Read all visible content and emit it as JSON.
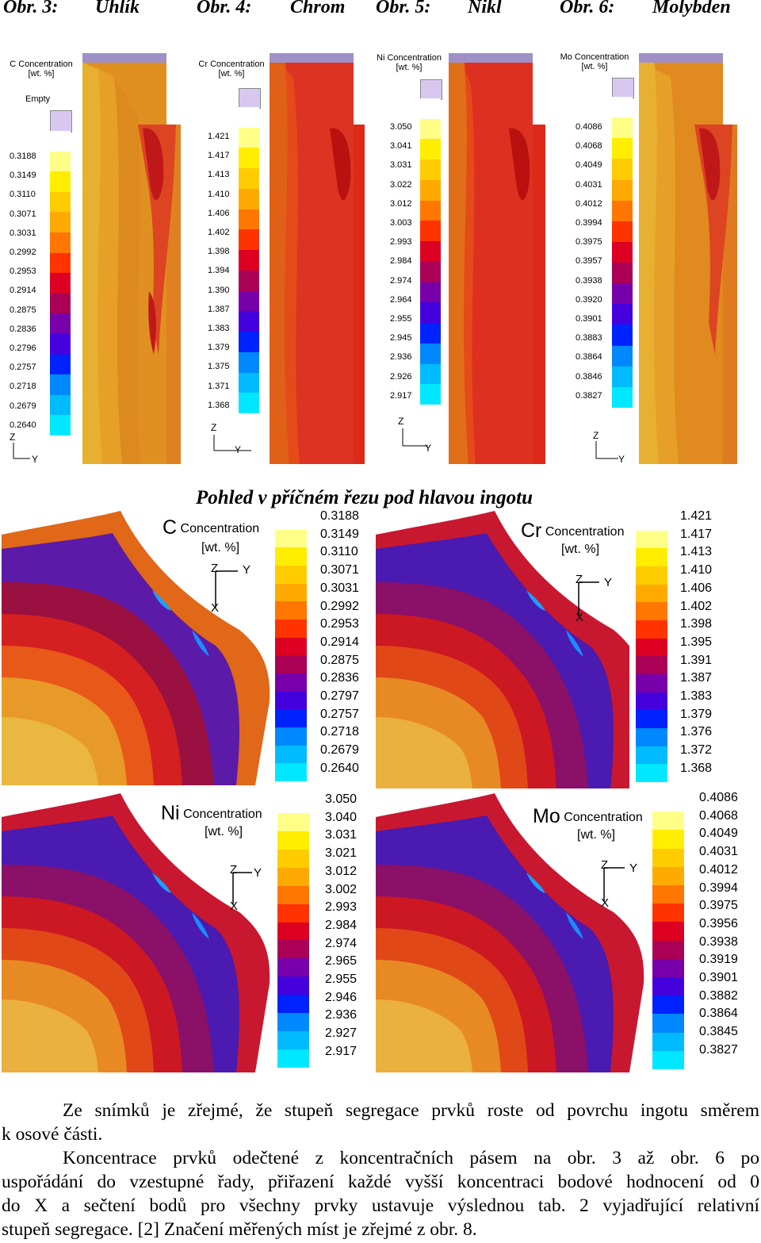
{
  "captions": [
    {
      "num": "Obr. 3:",
      "name": "Uhlík"
    },
    {
      "num": "Obr. 4:",
      "name": "Chrom"
    },
    {
      "num": "Obr. 5:",
      "name": "Nikl"
    },
    {
      "num": "Obr. 6:",
      "name": "Molybden"
    }
  ],
  "top_panels": [
    {
      "title_l1": "C Concentration",
      "title_l2": "[wt. %]",
      "empty_label": "Empty",
      "ticks": [
        "0.3188",
        "0.3149",
        "0.3110",
        "0.3071",
        "0.3031",
        "0.2992",
        "0.2953",
        "0.2914",
        "0.2875",
        "0.2836",
        "0.2796",
        "0.2757",
        "0.2718",
        "0.2679",
        "0.2640"
      ],
      "axis_z": "Z",
      "axis_y": "Y"
    },
    {
      "title_l1": "Cr Concentration",
      "title_l2": "[wt. %]",
      "ticks": [
        "1.421",
        "1.417",
        "1.413",
        "1.410",
        "1.406",
        "1.402",
        "1.398",
        "1.394",
        "1.390",
        "1.387",
        "1.383",
        "1.379",
        "1.375",
        "1.371",
        "1.368"
      ],
      "axis_z": "Z",
      "axis_y": "Y"
    },
    {
      "title_l1": "Ni Concentration",
      "title_l2": "[wt. %]",
      "ticks": [
        "3.050",
        "3.041",
        "3.031",
        "3.022",
        "3.012",
        "3.003",
        "2.993",
        "2.984",
        "2.974",
        "2.964",
        "2.955",
        "2.945",
        "2.936",
        "2.926",
        "2.917"
      ],
      "axis_z": "Z",
      "axis_y": "Y"
    },
    {
      "title_l1": "Mo Concentration",
      "title_l2": "[wt. %]",
      "ticks": [
        "0.4086",
        "0.4068",
        "0.4049",
        "0.4031",
        "0.4012",
        "0.3994",
        "0.3975",
        "0.3957",
        "0.3938",
        "0.3920",
        "0.3901",
        "0.3883",
        "0.3864",
        "0.3846",
        "0.3827"
      ],
      "axis_z": "Z",
      "axis_y": "Y"
    }
  ],
  "section_title": "Pohled v příčném řezu pod hlavou ingotu",
  "cross_panels": [
    {
      "symbol": "C",
      "title": "Concentration",
      "unit": "[wt. %]",
      "ticks": [
        "0.3188",
        "0.3149",
        "0.3110",
        "0.3071",
        "0.3031",
        "0.2992",
        "0.2953",
        "0.2914",
        "0.2875",
        "0.2836",
        "0.2797",
        "0.2757",
        "0.2718",
        "0.2679",
        "0.2640"
      ],
      "axis_z": "Z",
      "axis_y": "Y",
      "axis_x": "X"
    },
    {
      "symbol": "Cr",
      "title": "Concentration",
      "unit": "[wt. %]",
      "ticks": [
        "1.421",
        "1.417",
        "1.413",
        "1.410",
        "1.406",
        "1.402",
        "1.398",
        "1.395",
        "1.391",
        "1.387",
        "1.383",
        "1.379",
        "1.376",
        "1.372",
        "1.368"
      ],
      "axis_z": "Z",
      "axis_y": "Y",
      "axis_x": "X"
    },
    {
      "symbol": "Ni",
      "title": "Concentration",
      "unit": "[wt. %]",
      "ticks": [
        "3.050",
        "3.040",
        "3.031",
        "3.021",
        "3.012",
        "3.002",
        "2.993",
        "2.984",
        "2.974",
        "2.965",
        "2.955",
        "2.946",
        "2.936",
        "2.927",
        "2.917"
      ],
      "axis_z": "Z",
      "axis_y": "Y",
      "axis_x": "X"
    },
    {
      "symbol": "Mo",
      "title": "Concentration",
      "unit": "[wt. %]",
      "ticks": [
        "0.4086",
        "0.4068",
        "0.4049",
        "0.4031",
        "0.4012",
        "0.3994",
        "0.3975",
        "0.3956",
        "0.3938",
        "0.3919",
        "0.3901",
        "0.3882",
        "0.3864",
        "0.3845",
        "0.3827"
      ],
      "axis_z": "Z",
      "axis_y": "Y",
      "axis_x": "X"
    }
  ],
  "legend_colors": [
    "#ffffff",
    "#ffff88",
    "#ffee00",
    "#ffcc00",
    "#ffaa00",
    "#ff7700",
    "#ff3300",
    "#dd0022",
    "#aa0055",
    "#7700aa",
    "#4400dd",
    "#0022ff",
    "#0088ff",
    "#00bbff",
    "#00e8ff"
  ],
  "paragraphs": {
    "p1_l1": "Ze snímků je zřejmé, že stupeň segregace prvků roste od povrchu ingotu směrem",
    "p1_l2": "k osové části.",
    "p2_l1": "Koncentrace prvků odečtené z koncentračních pásem na obr. 3 až obr. 6 po",
    "p2_l2": "uspořádání do vzestupné řady, přiřazení každé vyšší koncentraci bodové hodnocení od 0",
    "p2_l3": "do X a sečtení bodů pro všechny prvky ustavuje výslednou tab. 2 vyjadřující relativní",
    "p2_l4": "stupeň segregace. [2] Značení měřených míst je zřejmé z obr. 8."
  }
}
